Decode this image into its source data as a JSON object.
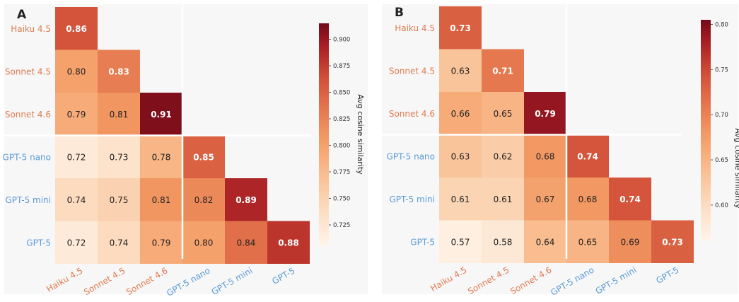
{
  "chart_data": [
    {
      "type": "heatmap",
      "panel_label": "A",
      "title": "",
      "models": [
        "Haiku 4.5",
        "Sonnet 4.5",
        "Sonnet 4.6",
        "GPT-5 nano",
        "GPT-5 mini",
        "GPT-5"
      ],
      "model_family": [
        "claude",
        "claude",
        "claude",
        "gpt",
        "gpt",
        "gpt"
      ],
      "matrix": [
        [
          0.86
        ],
        [
          0.8,
          0.83
        ],
        [
          0.79,
          0.81,
          0.91
        ],
        [
          0.72,
          0.73,
          0.78,
          0.85
        ],
        [
          0.74,
          0.75,
          0.81,
          0.82,
          0.89
        ],
        [
          0.72,
          0.74,
          0.79,
          0.8,
          0.84,
          0.88
        ]
      ],
      "colorbar": {
        "label": "Avg cosine similarity",
        "range": [
          0.705,
          0.915
        ],
        "ticks": [
          "0.725",
          "0.750",
          "0.775",
          "0.800",
          "0.825",
          "0.850",
          "0.875",
          "0.900"
        ]
      },
      "colors": {
        "claude": "#e07b4f",
        "gpt": "#5b9bd5"
      }
    },
    {
      "type": "heatmap",
      "panel_label": "B",
      "title": "",
      "models": [
        "Haiku 4.5",
        "Sonnet 4.5",
        "Sonnet 4.6",
        "GPT-5 nano",
        "GPT-5 mini",
        "GPT-5"
      ],
      "model_family": [
        "claude",
        "claude",
        "claude",
        "gpt",
        "gpt",
        "gpt"
      ],
      "matrix": [
        [
          0.73
        ],
        [
          0.63,
          0.71
        ],
        [
          0.66,
          0.65,
          0.79
        ],
        [
          0.63,
          0.62,
          0.68,
          0.74
        ],
        [
          0.61,
          0.61,
          0.67,
          0.68,
          0.74
        ],
        [
          0.57,
          0.58,
          0.64,
          0.65,
          0.69,
          0.73
        ]
      ],
      "colorbar": {
        "label": "Avg cosine similarity",
        "range": [
          0.56,
          0.805
        ],
        "ticks": [
          "0.60",
          "0.65",
          "0.70",
          "0.75",
          "0.80"
        ]
      },
      "colors": {
        "claude": "#e07b4f",
        "gpt": "#5b9bd5"
      }
    }
  ]
}
